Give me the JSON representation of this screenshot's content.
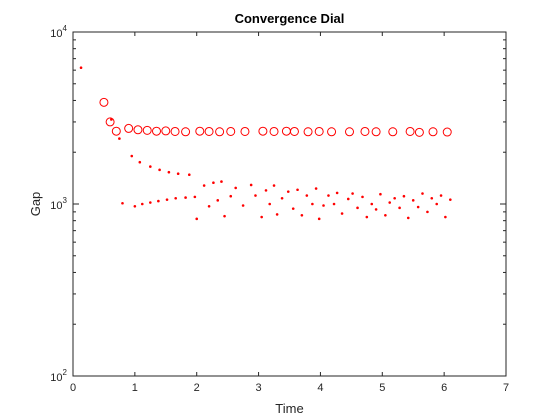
{
  "chart_data": {
    "type": "scatter",
    "title": "Convergence Dial",
    "xlabel": "Time",
    "ylabel": "Gap",
    "xlim": [
      0,
      7
    ],
    "ylim": [
      100,
      10000
    ],
    "yscale": "log",
    "xticks": [
      "0",
      "1",
      "2",
      "3",
      "4",
      "5",
      "6",
      "7"
    ],
    "yticks": [
      {
        "value": 100,
        "base": "10",
        "exp": "2"
      },
      {
        "value": 1000,
        "base": "10",
        "exp": "3"
      },
      {
        "value": 10000,
        "base": "10",
        "exp": "4"
      }
    ],
    "grid": false,
    "legend": "none",
    "series": [
      {
        "marker": "circle",
        "color": "#ff0000",
        "points": [
          [
            0.5,
            3900
          ],
          [
            0.6,
            3000
          ],
          [
            0.7,
            2650
          ],
          [
            0.9,
            2750
          ],
          [
            1.05,
            2700
          ],
          [
            1.2,
            2680
          ],
          [
            1.35,
            2650
          ],
          [
            1.5,
            2660
          ],
          [
            1.65,
            2640
          ],
          [
            1.82,
            2630
          ],
          [
            2.05,
            2650
          ],
          [
            2.2,
            2640
          ],
          [
            2.37,
            2630
          ],
          [
            2.55,
            2640
          ],
          [
            2.78,
            2640
          ],
          [
            3.07,
            2650
          ],
          [
            3.25,
            2640
          ],
          [
            3.45,
            2650
          ],
          [
            3.58,
            2640
          ],
          [
            3.8,
            2630
          ],
          [
            3.98,
            2640
          ],
          [
            4.18,
            2630
          ],
          [
            4.47,
            2630
          ],
          [
            4.72,
            2640
          ],
          [
            4.9,
            2630
          ],
          [
            5.17,
            2630
          ],
          [
            5.45,
            2640
          ],
          [
            5.6,
            2610
          ],
          [
            5.82,
            2630
          ],
          [
            6.05,
            2620
          ]
        ]
      },
      {
        "marker": "dot",
        "color": "#ff0000",
        "points": [
          [
            0.13,
            6200
          ],
          [
            0.62,
            3100
          ],
          [
            0.75,
            2400
          ],
          [
            0.95,
            1900
          ],
          [
            1.08,
            1750
          ],
          [
            1.25,
            1650
          ],
          [
            1.4,
            1580
          ],
          [
            1.55,
            1530
          ],
          [
            1.7,
            1500
          ],
          [
            1.88,
            1480
          ],
          [
            0.8,
            1010
          ],
          [
            1.0,
            970
          ],
          [
            1.12,
            1000
          ],
          [
            1.25,
            1020
          ],
          [
            1.38,
            1040
          ],
          [
            1.52,
            1060
          ],
          [
            1.66,
            1080
          ],
          [
            1.82,
            1090
          ],
          [
            1.97,
            1100
          ],
          [
            2.0,
            820
          ],
          [
            2.12,
            1280
          ],
          [
            2.2,
            970
          ],
          [
            2.27,
            1330
          ],
          [
            2.34,
            1050
          ],
          [
            2.4,
            1350
          ],
          [
            2.45,
            850
          ],
          [
            2.55,
            1110
          ],
          [
            2.63,
            1240
          ],
          [
            2.75,
            980
          ],
          [
            2.88,
            1290
          ],
          [
            2.95,
            1120
          ],
          [
            3.05,
            840
          ],
          [
            3.12,
            1200
          ],
          [
            3.18,
            1000
          ],
          [
            3.25,
            1280
          ],
          [
            3.3,
            870
          ],
          [
            3.38,
            1080
          ],
          [
            3.48,
            1180
          ],
          [
            3.56,
            940
          ],
          [
            3.63,
            1210
          ],
          [
            3.7,
            860
          ],
          [
            3.78,
            1120
          ],
          [
            3.87,
            1000
          ],
          [
            3.93,
            1230
          ],
          [
            3.98,
            820
          ],
          [
            4.05,
            980
          ],
          [
            4.13,
            1120
          ],
          [
            4.22,
            1000
          ],
          [
            4.27,
            1160
          ],
          [
            4.35,
            880
          ],
          [
            4.45,
            1070
          ],
          [
            4.52,
            1150
          ],
          [
            4.6,
            950
          ],
          [
            4.68,
            1100
          ],
          [
            4.75,
            840
          ],
          [
            4.83,
            1000
          ],
          [
            4.9,
            930
          ],
          [
            4.97,
            1140
          ],
          [
            5.05,
            860
          ],
          [
            5.12,
            1020
          ],
          [
            5.2,
            1080
          ],
          [
            5.28,
            950
          ],
          [
            5.35,
            1110
          ],
          [
            5.42,
            830
          ],
          [
            5.5,
            1050
          ],
          [
            5.58,
            960
          ],
          [
            5.65,
            1150
          ],
          [
            5.73,
            900
          ],
          [
            5.8,
            1080
          ],
          [
            5.88,
            1000
          ],
          [
            5.95,
            1120
          ],
          [
            6.02,
            840
          ],
          [
            6.1,
            1060
          ]
        ]
      }
    ]
  }
}
